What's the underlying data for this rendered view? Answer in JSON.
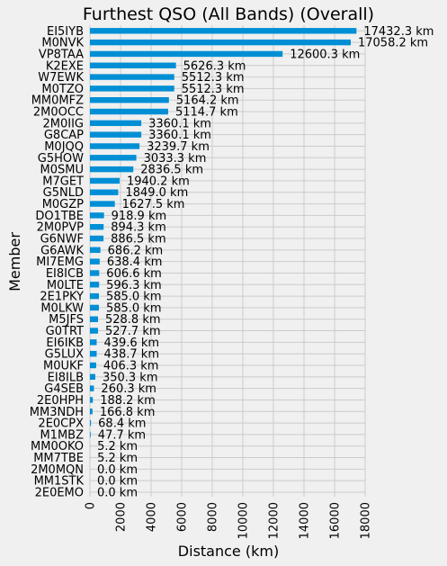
{
  "chart_data": {
    "type": "bar",
    "orientation": "horizontal",
    "title": "Furthest QSO (All Bands) (Overall)",
    "xlabel": "Distance (km)",
    "ylabel": "Member",
    "xlim": [
      0,
      18000
    ],
    "xticks": [
      0,
      2000,
      4000,
      6000,
      8000,
      10000,
      12000,
      14000,
      16000,
      18000
    ],
    "grid": true,
    "bar_color": "#008fd5",
    "categories": [
      "EI5IYB",
      "M0NVK",
      "VP8TAA",
      "K2EXE",
      "W7EWK",
      "M0TZO",
      "MM0MFZ",
      "2M0OCC",
      "2M0IIG",
      "G8CAP",
      "M0JQQ",
      "G5HOW",
      "M0SMU",
      "M7GET",
      "G5NLD",
      "M0GZP",
      "DO1TBE",
      "2M0PVP",
      "G6NWF",
      "G6AWK",
      "MI7EMG",
      "EI8ICB",
      "M0LTE",
      "2E1PKY",
      "M0LKW",
      "M5JFS",
      "G0TRT",
      "EI6IKB",
      "G5LUX",
      "M0UKF",
      "EI8ILB",
      "G4SEB",
      "2E0HPH",
      "MM3NDH",
      "2E0CPX",
      "M1MBZ",
      "MM0OKO",
      "MM7TBE",
      "2M0MQN",
      "MM1STK",
      "2E0EMO"
    ],
    "values": [
      17432.3,
      17058.2,
      12600.3,
      5626.3,
      5512.3,
      5512.3,
      5164.2,
      5114.7,
      3360.1,
      3360.1,
      3239.7,
      3033.3,
      2836.5,
      1940.2,
      1849.0,
      1627.5,
      918.9,
      894.3,
      886.5,
      686.2,
      638.4,
      606.6,
      596.3,
      585.0,
      585.0,
      528.8,
      527.7,
      439.6,
      438.7,
      406.3,
      350.3,
      260.3,
      188.2,
      166.8,
      68.4,
      47.7,
      5.2,
      5.2,
      0.0,
      0.0,
      0.0
    ],
    "data_labels": [
      "17432.3 km",
      "17058.2 km",
      "12600.3 km",
      "5626.3 km",
      "5512.3 km",
      "5512.3 km",
      "5164.2 km",
      "5114.7 km",
      "3360.1 km",
      "3360.1 km",
      "3239.7 km",
      "3033.3 km",
      "2836.5 km",
      "1940.2 km",
      "1849.0 km",
      "1627.5 km",
      "918.9 km",
      "894.3 km",
      "886.5 km",
      "686.2 km",
      "638.4 km",
      "606.6 km",
      "596.3 km",
      "585.0 km",
      "585.0 km",
      "528.8 km",
      "527.7 km",
      "439.6 km",
      "438.7 km",
      "406.3 km",
      "350.3 km",
      "260.3 km",
      "188.2 km",
      "166.8 km",
      "68.4 km",
      "47.7 km",
      "5.2 km",
      "5.2 km",
      "0.0 km",
      "0.0 km",
      "0.0 km"
    ]
  }
}
